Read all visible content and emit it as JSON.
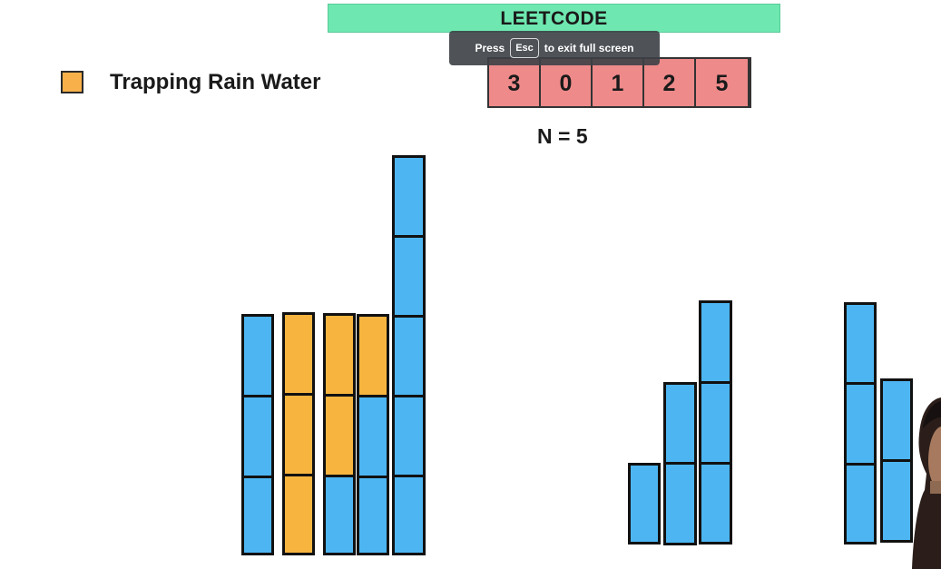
{
  "banner": {
    "title": "LEETCODE"
  },
  "legend": {
    "label": "Trapping Rain Water",
    "swatch_color": "#f7b04a"
  },
  "array": {
    "values": [
      "3",
      "0",
      "1",
      "2",
      "5"
    ]
  },
  "n_label": "N = 5",
  "fullscreen_toast": {
    "before": "Press",
    "key": "Esc",
    "after": "to exit full screen"
  },
  "colors": {
    "bar": "#4db6f2",
    "water": "#f7b540",
    "array_cell": "#ee8a8a",
    "banner": "#6ee8b0"
  }
}
